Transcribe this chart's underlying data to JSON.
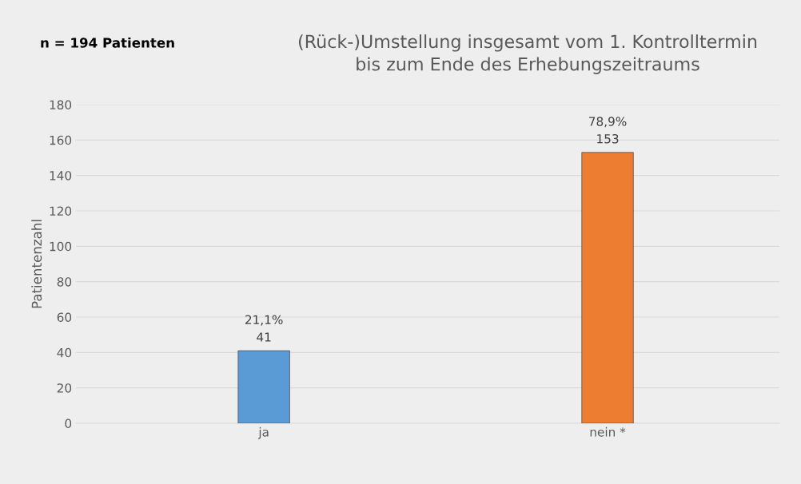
{
  "chart_data": {
    "type": "bar",
    "title": "(Rück-)Umstellung insgesamt vom 1. Kontrolltermin\nbis zum Ende des Erhebungszeitraums",
    "ylabel": "Patientenzahl",
    "annotations": [
      "n = 194 Patienten"
    ],
    "categories": [
      "ja",
      "nein *"
    ],
    "values": [
      41,
      153
    ],
    "colors": [
      "#5b9bd5",
      "#ed7d31"
    ],
    "value_labels": [
      "21,1%\n41",
      "78,9%\n153"
    ],
    "ylim": [
      0,
      180
    ],
    "yticks": [
      0,
      20,
      40,
      60,
      80,
      100,
      120,
      140,
      160,
      180
    ],
    "grid": "y",
    "legend": false
  }
}
